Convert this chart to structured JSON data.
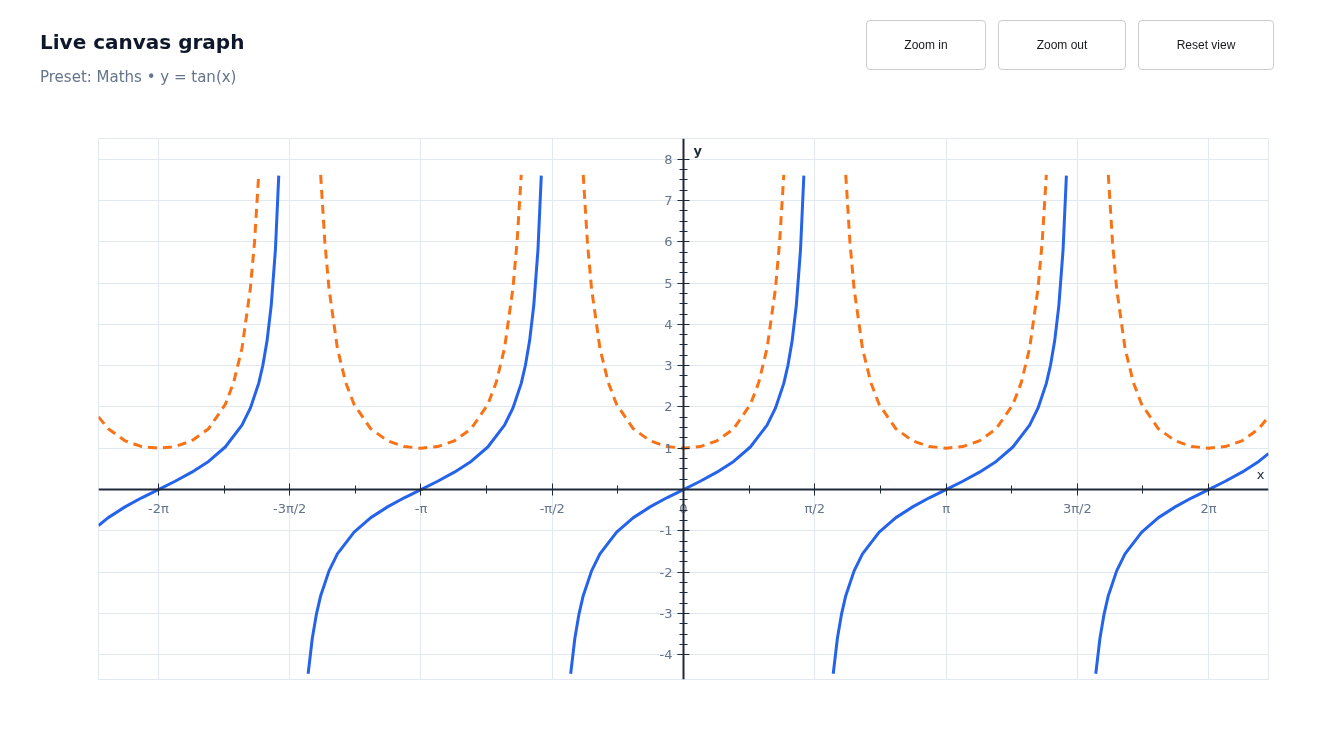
{
  "chart_data": {
    "type": "line",
    "title": "Live canvas graph",
    "subtitle": "Preset: Maths • y = tan(x)",
    "annotations": [
      "Zoom in",
      "Zoom out",
      "Reset view"
    ],
    "xlabel": "x",
    "ylabel": "y",
    "xlim": [
      -7,
      7
    ],
    "ylim": [
      -4.6,
      8.5
    ],
    "xticks": [
      {
        "value": -6.2832,
        "label": "-2π"
      },
      {
        "value": -4.7124,
        "label": "-3π/2"
      },
      {
        "value": -3.1416,
        "label": "-π"
      },
      {
        "value": -1.5708,
        "label": "-π/2"
      },
      0,
      {
        "value": 1.5708,
        "label": "π/2"
      },
      {
        "value": 3.1416,
        "label": "π"
      },
      {
        "value": 4.7124,
        "label": "3π/2"
      },
      {
        "value": 6.2832,
        "label": "2π"
      }
    ],
    "yticks": [
      -4,
      -3,
      -2,
      -1,
      {
        "value": 0,
        "label": null
      },
      1,
      2,
      3,
      4,
      5,
      6,
      7,
      8
    ],
    "grid": true,
    "marker": "none",
    "series": [
      {
        "color": "#2563eb",
        "line_style": "solid",
        "x": [
          -7,
          -6.8832,
          -6.6832,
          -6.4832,
          -6.2832,
          -6.0832,
          -5.8832,
          -5.6832,
          -5.4832,
          -5.2832,
          -5.1832,
          -5.0832,
          -5.0332,
          -4.9832,
          -4.9332,
          -4.8832,
          -4.8432,
          -4.7124,
          -4.4916,
          -4.4416,
          -4.3916,
          -4.3416,
          -4.2416,
          -4.1416,
          -3.9416,
          -3.7416,
          -3.5416,
          -3.3416,
          -3.1416,
          -2.9416,
          -2.7416,
          -2.5416,
          -2.3416,
          -2.1416,
          -2.0416,
          -1.9416,
          -1.8916,
          -1.8416,
          -1.7916,
          -1.7416,
          -1.7016,
          -1.5708,
          -1.35,
          -1.3,
          -1.25,
          -1.2,
          -1.1,
          -1.0,
          -0.8,
          -0.6,
          -0.4,
          -0.2,
          0,
          0.2,
          0.4,
          0.6,
          0.8,
          1.0,
          1.1,
          1.2,
          1.25,
          1.3,
          1.35,
          1.4,
          1.44,
          1.5708,
          1.7916,
          1.8416,
          1.8916,
          1.9416,
          2.0416,
          2.1416,
          2.3416,
          2.5416,
          2.7416,
          2.9416,
          3.1416,
          3.3416,
          3.5416,
          3.7416,
          3.9416,
          4.1416,
          4.2416,
          4.3416,
          4.3916,
          4.4416,
          4.4916,
          4.5416,
          4.5816,
          4.7124,
          4.9332,
          4.9832,
          5.0332,
          5.0832,
          5.1832,
          5.2832,
          5.4832,
          5.6832,
          5.8832,
          6.0832,
          6.2832,
          6.4832,
          6.6832,
          6.8832,
          7
        ],
        "values": [
          -0.87,
          -0.68,
          -0.42,
          -0.2,
          0,
          0.2,
          0.42,
          0.68,
          1.03,
          1.56,
          1.97,
          2.57,
          3.01,
          3.6,
          4.46,
          5.8,
          7.6,
          null,
          -4.46,
          -3.6,
          -3.01,
          -2.57,
          -1.97,
          -1.56,
          -1.03,
          -0.68,
          -0.42,
          -0.2,
          0,
          0.2,
          0.42,
          0.68,
          1.03,
          1.56,
          1.97,
          2.57,
          3.01,
          3.6,
          4.46,
          5.8,
          7.6,
          null,
          -4.46,
          -3.6,
          -3.01,
          -2.57,
          -1.97,
          -1.56,
          -1.03,
          -0.68,
          -0.42,
          -0.2,
          0,
          0.2,
          0.42,
          0.68,
          1.03,
          1.56,
          1.97,
          2.57,
          3.01,
          3.6,
          4.46,
          5.8,
          7.6,
          null,
          -4.46,
          -3.6,
          -3.01,
          -2.57,
          -1.97,
          -1.56,
          -1.03,
          -0.68,
          -0.42,
          -0.2,
          0,
          0.2,
          0.42,
          0.68,
          1.03,
          1.56,
          1.97,
          2.57,
          3.01,
          3.6,
          4.46,
          5.8,
          7.6,
          null,
          -4.46,
          -3.6,
          -3.01,
          -2.57,
          -1.97,
          -1.56,
          -1.03,
          -0.68,
          -0.42,
          -0.2,
          0,
          0.2,
          0.42,
          0.68,
          0.87
        ]
      },
      {
        "color": "#f97316",
        "line_style": "dashed",
        "x": [
          -7,
          -6.8832,
          -6.6832,
          -6.4832,
          -6.2832,
          -6.0832,
          -5.8832,
          -5.6832,
          -5.4832,
          -5.3832,
          -5.2832,
          -5.1832,
          -5.1332,
          -5.0832,
          -4.7124,
          -4.3416,
          -4.2916,
          -4.2416,
          -4.1416,
          -4.0416,
          -3.9416,
          -3.7416,
          -3.5416,
          -3.3416,
          -3.1416,
          -2.9416,
          -2.7416,
          -2.5416,
          -2.3416,
          -2.2416,
          -2.1416,
          -2.0416,
          -1.9916,
          -1.9416,
          -1.5708,
          -1.2,
          -1.15,
          -1.1,
          -1.0,
          -0.9,
          -0.8,
          -0.6,
          -0.4,
          -0.2,
          0,
          0.2,
          0.4,
          0.6,
          0.8,
          0.9,
          1.0,
          1.1,
          1.15,
          1.2,
          1.5708,
          1.9416,
          1.9916,
          2.0416,
          2.1416,
          2.2416,
          2.3416,
          2.5416,
          2.7416,
          2.9416,
          3.1416,
          3.3416,
          3.5416,
          3.7416,
          3.9416,
          4.0416,
          4.1416,
          4.2416,
          4.2916,
          4.3416,
          4.7124,
          5.0832,
          5.1332,
          5.1832,
          5.2832,
          5.3832,
          5.4832,
          5.6832,
          5.8832,
          6.0832,
          6.2832,
          6.4832,
          6.6832,
          6.8832,
          7
        ],
        "values": [
          1.76,
          1.47,
          1.18,
          1.04,
          1,
          1.04,
          1.18,
          1.47,
          2.06,
          2.59,
          3.42,
          4.86,
          5.99,
          7.62,
          null,
          7.62,
          5.99,
          4.86,
          3.42,
          2.59,
          2.06,
          1.47,
          1.18,
          1.04,
          1,
          1.04,
          1.18,
          1.47,
          2.06,
          2.59,
          3.42,
          4.86,
          5.99,
          7.62,
          null,
          7.62,
          5.99,
          4.86,
          3.42,
          2.59,
          2.06,
          1.47,
          1.18,
          1.04,
          1,
          1.04,
          1.18,
          1.47,
          2.06,
          2.59,
          3.42,
          4.86,
          5.99,
          7.62,
          null,
          7.62,
          5.99,
          4.86,
          3.42,
          2.59,
          2.06,
          1.47,
          1.18,
          1.04,
          1,
          1.04,
          1.18,
          1.47,
          2.06,
          2.59,
          3.42,
          4.86,
          5.99,
          7.62,
          null,
          7.62,
          5.99,
          4.86,
          3.42,
          2.59,
          2.06,
          1.47,
          1.18,
          1.04,
          1,
          1.04,
          1.18,
          1.47,
          1.76
        ]
      }
    ]
  }
}
